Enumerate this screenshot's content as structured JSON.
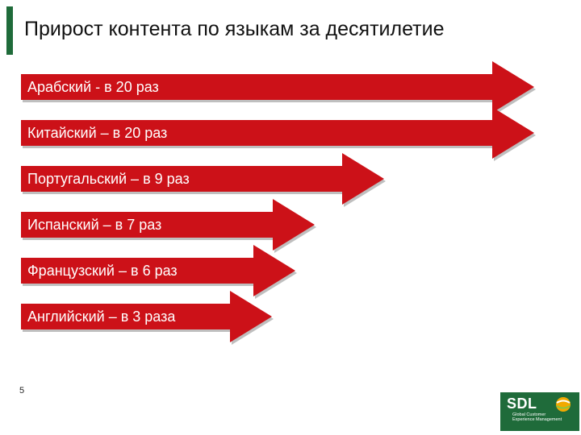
{
  "slide": {
    "title": "Прирост контента по языкам за десятилетие",
    "page_number": "5"
  },
  "colors": {
    "arrow_fill": "#cc1118",
    "arrow_shadow": "#8b8b8b",
    "title_bar": "#1f6b3a",
    "logo_bg": "#1f6b3a"
  },
  "arrows": [
    {
      "label": "Арабский  - в 20 раз",
      "multiplier": 20
    },
    {
      "label": "Китайский – в 20 раз",
      "multiplier": 20
    },
    {
      "label": "Португальский – в 9 раз",
      "multiplier": 9
    },
    {
      "label": "Испанский – в 7 раз",
      "multiplier": 7
    },
    {
      "label": "Французский – в 6 раз",
      "multiplier": 6
    },
    {
      "label": "Английский – в 3 раза",
      "multiplier": 3
    }
  ],
  "logo": {
    "text": "SDL",
    "subtitle_line1": "Global Customer",
    "subtitle_line2": "Experience Management",
    "icon": "sdl-globe-icon"
  }
}
